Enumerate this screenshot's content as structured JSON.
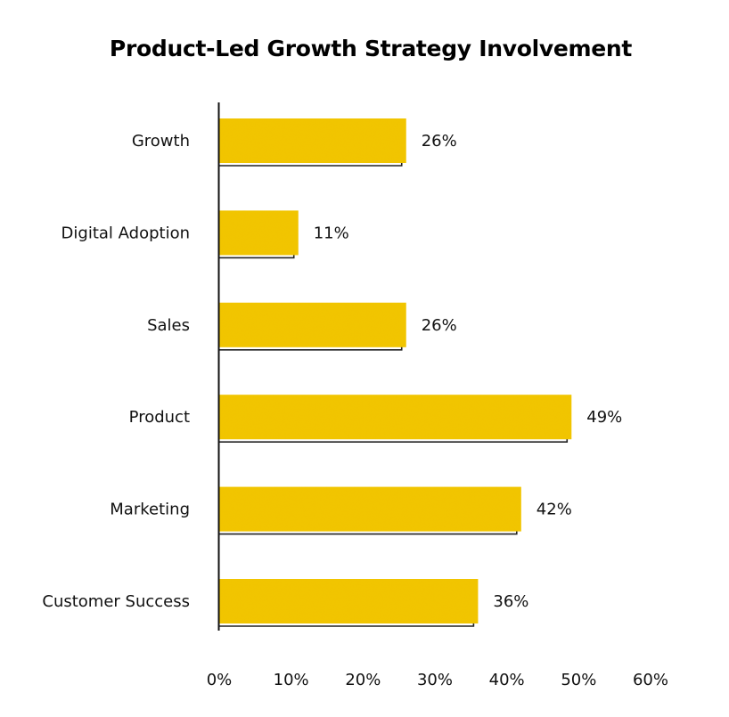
{
  "chart_data": {
    "type": "bar",
    "orientation": "horizontal",
    "title": "Product-Led Growth Strategy Involvement",
    "xlabel": "",
    "ylabel": "",
    "categories": [
      "Growth",
      "Digital Adoption",
      "Sales",
      "Product",
      "Marketing",
      "Customer Success"
    ],
    "values": [
      26,
      11,
      26,
      49,
      42,
      36
    ],
    "value_labels": [
      "26%",
      "11%",
      "26%",
      "49%",
      "42%",
      "36%"
    ],
    "xlim": [
      0,
      60
    ],
    "x_ticks": [
      0,
      10,
      20,
      30,
      40,
      50,
      60
    ],
    "x_tick_labels": [
      "0%",
      "10%",
      "20%",
      "30%",
      "40%",
      "50%",
      "60%"
    ],
    "grid": false,
    "legend": "none",
    "colors": {
      "bar": "#F2C311",
      "bar_shadow_outline": "#222222",
      "axis": "#111111",
      "text": "#111111"
    }
  }
}
